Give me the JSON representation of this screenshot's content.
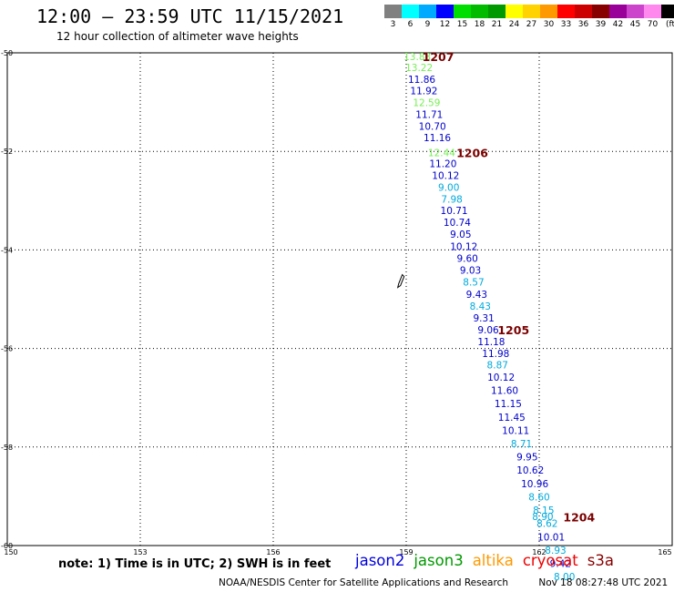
{
  "header": {
    "title": "12:00 – 23:59 UTC 11/15/2021",
    "subtitle": "12 hour collection of altimeter wave heights"
  },
  "legend": {
    "unit": "(ft)",
    "items": [
      {
        "label": "3",
        "color": "#808080"
      },
      {
        "label": "6",
        "color": "#00ffff"
      },
      {
        "label": "9",
        "color": "#00aaff"
      },
      {
        "label": "12",
        "color": "#0000ff"
      },
      {
        "label": "15",
        "color": "#00dd00"
      },
      {
        "label": "18",
        "color": "#00bb00"
      },
      {
        "label": "21",
        "color": "#009900"
      },
      {
        "label": "24",
        "color": "#ffff00"
      },
      {
        "label": "27",
        "color": "#ffd200"
      },
      {
        "label": "30",
        "color": "#ff9900"
      },
      {
        "label": "33",
        "color": "#ff0000"
      },
      {
        "label": "36",
        "color": "#cc0000"
      },
      {
        "label": "39",
        "color": "#880000"
      },
      {
        "label": "42",
        "color": "#990099"
      },
      {
        "label": "45",
        "color": "#cc44cc"
      },
      {
        "label": "70",
        "color": "#ff88ee"
      },
      {
        "label": "",
        "color": "#000000"
      }
    ]
  },
  "axes": {
    "lon_ticks": [
      {
        "value": 150,
        "label": "150"
      },
      {
        "value": 153,
        "label": "153"
      },
      {
        "value": 156,
        "label": "156"
      },
      {
        "value": 159,
        "label": "159"
      },
      {
        "value": 162,
        "label": "162"
      },
      {
        "value": 165,
        "label": "165"
      }
    ],
    "lat_ticks": [
      {
        "value": -50,
        "label": "-50"
      },
      {
        "value": -52,
        "label": "-52"
      },
      {
        "value": -54,
        "label": "-54"
      },
      {
        "value": -56,
        "label": "-56"
      },
      {
        "value": -58,
        "label": "-58"
      },
      {
        "value": -60,
        "label": "-60"
      }
    ]
  },
  "colors": {
    "light_green": "#77ee55",
    "blue": "#0000cc",
    "cyan": "#00aadd",
    "time_label": "#7a0000"
  },
  "observations": [
    {
      "lon": 159.25,
      "lat": -50.07,
      "text": "13.83",
      "color": "light_green"
    },
    {
      "lon": 159.29,
      "lat": -50.3,
      "text": "13.22",
      "color": "light_green"
    },
    {
      "lon": 159.35,
      "lat": -50.54,
      "text": "11.86",
      "color": "blue"
    },
    {
      "lon": 159.4,
      "lat": -50.77,
      "text": "11.92",
      "color": "blue"
    },
    {
      "lon": 159.46,
      "lat": -51.01,
      "text": "12.59",
      "color": "light_green"
    },
    {
      "lon": 159.52,
      "lat": -51.25,
      "text": "11.71",
      "color": "blue"
    },
    {
      "lon": 159.59,
      "lat": -51.49,
      "text": "10.70",
      "color": "blue"
    },
    {
      "lon": 159.7,
      "lat": -51.72,
      "text": "11.16",
      "color": "blue"
    },
    {
      "lon": 159.8,
      "lat": -52.02,
      "text": "12.44",
      "color": "light_green"
    },
    {
      "lon": 159.83,
      "lat": -52.25,
      "text": "11.20",
      "color": "blue"
    },
    {
      "lon": 159.89,
      "lat": -52.49,
      "text": "10.12",
      "color": "blue"
    },
    {
      "lon": 159.96,
      "lat": -52.73,
      "text": "9.00",
      "color": "cyan"
    },
    {
      "lon": 160.03,
      "lat": -52.97,
      "text": "7.98",
      "color": "cyan"
    },
    {
      "lon": 160.08,
      "lat": -53.2,
      "text": "10.71",
      "color": "blue"
    },
    {
      "lon": 160.15,
      "lat": -53.44,
      "text": "10.74",
      "color": "blue"
    },
    {
      "lon": 160.23,
      "lat": -53.68,
      "text": "9.05",
      "color": "blue"
    },
    {
      "lon": 160.3,
      "lat": -53.93,
      "text": "10.12",
      "color": "blue"
    },
    {
      "lon": 160.38,
      "lat": -54.17,
      "text": "9.60",
      "color": "blue"
    },
    {
      "lon": 160.45,
      "lat": -54.41,
      "text": "9.03",
      "color": "blue"
    },
    {
      "lon": 160.52,
      "lat": -54.65,
      "text": "8.57",
      "color": "cyan"
    },
    {
      "lon": 160.59,
      "lat": -54.9,
      "text": "9.43",
      "color": "blue"
    },
    {
      "lon": 160.67,
      "lat": -55.14,
      "text": "8.43",
      "color": "cyan"
    },
    {
      "lon": 160.75,
      "lat": -55.38,
      "text": "9.31",
      "color": "blue"
    },
    {
      "lon": 160.85,
      "lat": -55.62,
      "text": "9.06",
      "color": "blue"
    },
    {
      "lon": 160.92,
      "lat": -55.86,
      "text": "11.18",
      "color": "blue"
    },
    {
      "lon": 161.02,
      "lat": -56.1,
      "text": "11.98",
      "color": "blue"
    },
    {
      "lon": 161.06,
      "lat": -56.33,
      "text": "8.87",
      "color": "cyan"
    },
    {
      "lon": 161.14,
      "lat": -56.58,
      "text": "10.12",
      "color": "blue"
    },
    {
      "lon": 161.22,
      "lat": -56.85,
      "text": "11.60",
      "color": "blue"
    },
    {
      "lon": 161.3,
      "lat": -57.12,
      "text": "11.15",
      "color": "blue"
    },
    {
      "lon": 161.38,
      "lat": -57.39,
      "text": "11.45",
      "color": "blue"
    },
    {
      "lon": 161.47,
      "lat": -57.66,
      "text": "10.11",
      "color": "blue"
    },
    {
      "lon": 161.6,
      "lat": -57.93,
      "text": "8.71",
      "color": "cyan"
    },
    {
      "lon": 161.73,
      "lat": -58.2,
      "text": "9.95",
      "color": "blue"
    },
    {
      "lon": 161.8,
      "lat": -58.47,
      "text": "10.62",
      "color": "blue"
    },
    {
      "lon": 161.9,
      "lat": -58.74,
      "text": "10.96",
      "color": "blue"
    },
    {
      "lon": 162.0,
      "lat": -59.01,
      "text": "8.60",
      "color": "cyan"
    },
    {
      "lon": 162.1,
      "lat": -59.28,
      "text": "8.15",
      "color": "cyan"
    },
    {
      "lon": 162.08,
      "lat": -59.41,
      "text": "8.90",
      "color": "cyan"
    },
    {
      "lon": 162.18,
      "lat": -59.55,
      "text": "8.62",
      "color": "cyan"
    },
    {
      "lon": 162.27,
      "lat": -59.82,
      "text": "10.01",
      "color": "blue"
    },
    {
      "lon": 162.37,
      "lat": -60.09,
      "text": "8.93",
      "color": "cyan"
    },
    {
      "lon": 162.48,
      "lat": -60.36,
      "text": "9.42",
      "color": "blue"
    },
    {
      "lon": 162.57,
      "lat": -60.63,
      "text": "8.00",
      "color": "cyan"
    }
  ],
  "time_labels": [
    {
      "lon": 159.72,
      "lat": -50.07,
      "text": "1207"
    },
    {
      "lon": 160.49,
      "lat": -52.02,
      "text": "1206"
    },
    {
      "lon": 161.42,
      "lat": -55.62,
      "text": "1205"
    },
    {
      "lon": 162.9,
      "lat": -59.42,
      "text": "1204"
    }
  ],
  "island": {
    "lon": 158.85,
    "lat": -54.65,
    "name": "island-outline"
  },
  "note": "note: 1) Time is in UTC; 2) SWH is in feet",
  "satellites": [
    {
      "name": "jason2",
      "color": "#0000dd"
    },
    {
      "name": "jason3",
      "color": "#009900"
    },
    {
      "name": "altika",
      "color": "#ff9900"
    },
    {
      "name": "cryosat",
      "color": "#ee0000"
    },
    {
      "name": "s3a",
      "color": "#880000"
    }
  ],
  "footer": {
    "credit": "NOAA/NESDIS Center for Satellite Applications and Research",
    "timestamp": "Nov 18 08:27:48 UTC 2021"
  }
}
